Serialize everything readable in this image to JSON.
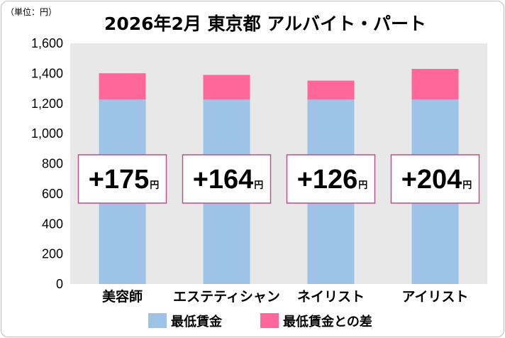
{
  "chart_data": {
    "type": "bar",
    "stacked": true,
    "title": "2026年2月 東京都 アルバイト・パート",
    "unit_label": "（単位：円）",
    "categories": [
      "美容師",
      "エステティシャン",
      "ネイリスト",
      "アイリスト"
    ],
    "series": [
      {
        "name": "最低賃金",
        "values": [
          1226,
          1226,
          1226,
          1226
        ],
        "color": "#9DC3E6"
      },
      {
        "name": "最低賃金との差",
        "values": [
          175,
          164,
          126,
          204
        ],
        "color": "#FF6699"
      }
    ],
    "diff_labels": [
      "+175",
      "+164",
      "+126",
      "+204"
    ],
    "diff_unit": "円",
    "ylim": [
      0,
      1600
    ],
    "yticks": [
      0,
      200,
      400,
      600,
      800,
      1000,
      1200,
      1400,
      1600
    ],
    "ytick_labels": [
      "0",
      "200",
      "400",
      "600",
      "800",
      "1,000",
      "1,200",
      "1,400",
      "1,600"
    ],
    "grid": false,
    "legend_position": "bottom",
    "plot_background": "#E8E8E8",
    "callout_border_color": "#C0508A"
  }
}
